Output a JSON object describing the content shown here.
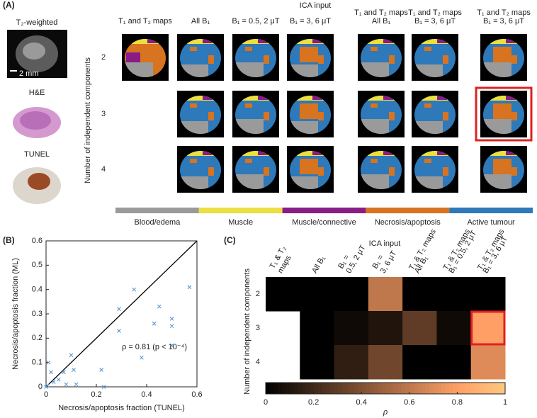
{
  "panel_a": {
    "label": "(A)",
    "side_labels": [
      "T₂-weighted",
      "H&E",
      "TUNEL"
    ],
    "scale_bar": "2 mm",
    "group_title": "ICA input",
    "columns": [
      [
        "T₁ and T₂ maps"
      ],
      [
        "All B₁"
      ],
      [
        "B₁ = 0.5, 2 μT"
      ],
      [
        "B₁ = 3, 6 μT"
      ],
      [
        "T₁ and T₂ maps",
        "All B₁"
      ],
      [
        "T₁ and T₂ maps",
        "B₁ = 3, 6 μT"
      ],
      [
        "T₁ and T₂ maps",
        "B₁ = 3, 6 μT"
      ]
    ],
    "rows": [
      "2",
      "3",
      "4"
    ],
    "y_label": "Number of independent components",
    "legend": [
      {
        "name": "Blood/edema",
        "color": "#9a9a9a"
      },
      {
        "name": "Muscle",
        "color": "#ece040"
      },
      {
        "name": "Muscle/connective",
        "color": "#8a1c88"
      },
      {
        "name": "Necrosis/apoptosis",
        "color": "#d8731f"
      },
      {
        "name": "Active tumour",
        "color": "#2d79b9"
      }
    ]
  },
  "panel_b_label": "(B)",
  "panel_c_label": "(C)",
  "chart_data": [
    {
      "type": "scatter",
      "x_label": "Necrosis/apoptosis fraction (TUNEL)",
      "y_label": "Necrosis/apoptosis fraction (ML)",
      "annotation": "ρ = 0.81 (p < 10⁻⁴)",
      "xlim": [
        0,
        0.6
      ],
      "ylim": [
        0,
        0.6
      ],
      "xticks": [
        0,
        0.2,
        0.4,
        0.6
      ],
      "yticks": [
        0,
        0.1,
        0.2,
        0.3,
        0.4,
        0.5,
        0.6
      ],
      "series": [
        {
          "color": "#4a8fd4",
          "x": [
            0.0,
            0.005,
            0.01,
            0.02,
            0.03,
            0.05,
            0.07,
            0.08,
            0.1,
            0.11,
            0.12,
            0.22,
            0.23,
            0.29,
            0.29,
            0.35,
            0.38,
            0.43,
            0.45,
            0.5,
            0.5,
            0.5,
            0.57
          ],
          "values": [
            0.0,
            0.005,
            0.1,
            0.06,
            0.02,
            0.03,
            0.06,
            0.01,
            0.13,
            0.07,
            0.01,
            0.07,
            0.0,
            0.32,
            0.23,
            0.4,
            0.12,
            0.26,
            0.33,
            0.28,
            0.25,
            0.17,
            0.41
          ]
        }
      ]
    },
    {
      "type": "heatmap",
      "title": "ICA input",
      "x_categories": [
        [
          "T₁ & T₂",
          "maps"
        ],
        [
          "All B₁"
        ],
        [
          "B₁ =",
          "0.5, 2 μT"
        ],
        [
          "B₁ =",
          "3, 6 μT"
        ],
        [
          "T₁ & T₂ maps",
          "All B₁"
        ],
        [
          "T₁ & T₂ maps",
          "B₁ = 0.5, 2 μT"
        ],
        [
          "T₁ & T₂ maps",
          "B₁ = 3, 6 μT"
        ]
      ],
      "categories": [
        "2",
        "3",
        "4"
      ],
      "y_label": "Number of independent components",
      "values": [
        [
          0,
          0,
          0,
          0.6,
          0,
          0,
          0
        ],
        [
          null,
          0,
          0.05,
          0.1,
          0.3,
          0.05,
          0.8
        ],
        [
          null,
          0,
          0.15,
          0.35,
          0,
          0,
          0.7
        ]
      ],
      "colormap": "copper",
      "colorbar": {
        "label": "ρ",
        "lim": [
          0,
          1
        ],
        "ticks": [
          0,
          0.2,
          0.4,
          0.6,
          0.8,
          1
        ]
      }
    }
  ]
}
